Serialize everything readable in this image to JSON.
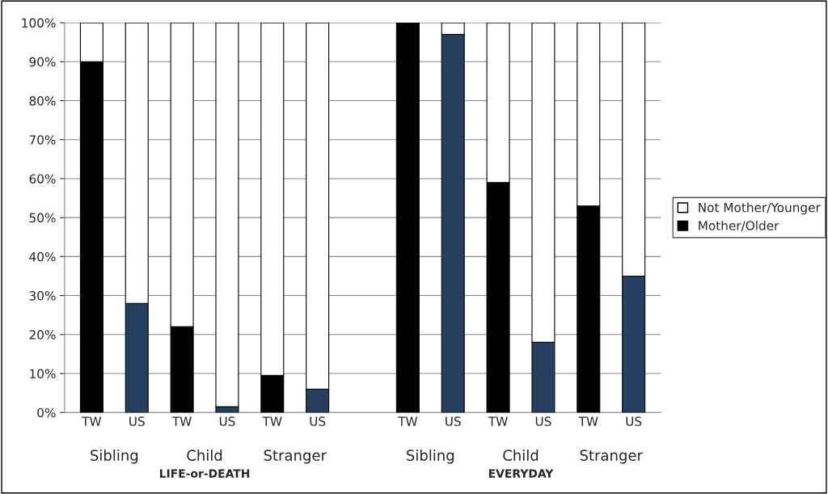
{
  "chart_data": {
    "type": "bar",
    "stacked": true,
    "categories": [
      "TW",
      "US",
      "TW",
      "US",
      "TW",
      "US",
      null,
      "TW",
      "US",
      "TW",
      "US",
      "TW",
      "US"
    ],
    "series": [
      {
        "name": "Mother/Older",
        "colors": [
          "#000000",
          "#243f60",
          "#000000",
          "#243f60",
          "#000000",
          "#243f60",
          "#000000",
          "#000000",
          "#243f60",
          "#000000",
          "#243f60",
          "#000000",
          "#243f60"
        ],
        "values": [
          90,
          28,
          22,
          1.5,
          9.5,
          6,
          null,
          100,
          97,
          59,
          18,
          53,
          35
        ]
      },
      {
        "name": "Not Mother/Younger",
        "color": "#ffffff",
        "values": [
          10,
          72,
          78,
          98.5,
          90.5,
          94,
          null,
          null,
          3,
          41,
          82,
          47,
          65
        ]
      }
    ],
    "ylim": [
      0,
      100
    ],
    "yticks": [
      {
        "value": 0,
        "label": "0%"
      },
      {
        "value": 10,
        "label": "10%"
      },
      {
        "value": 20,
        "label": "20%"
      },
      {
        "value": 30,
        "label": "30%"
      },
      {
        "value": 40,
        "label": "40%"
      },
      {
        "value": 50,
        "label": "50%"
      },
      {
        "value": 60,
        "label": "60%"
      },
      {
        "value": 70,
        "label": "70%"
      },
      {
        "value": 80,
        "label": "80%"
      },
      {
        "value": 90,
        "label": "90%"
      },
      {
        "value": 100,
        "label": "100%"
      }
    ],
    "grid": "y",
    "legend": "right",
    "annotations": [
      "Sibling",
      "Child",
      "Stranger",
      "Sibling",
      "Child",
      "Stranger",
      "LIFE-or-DEATH",
      "EVERYDAY"
    ]
  }
}
